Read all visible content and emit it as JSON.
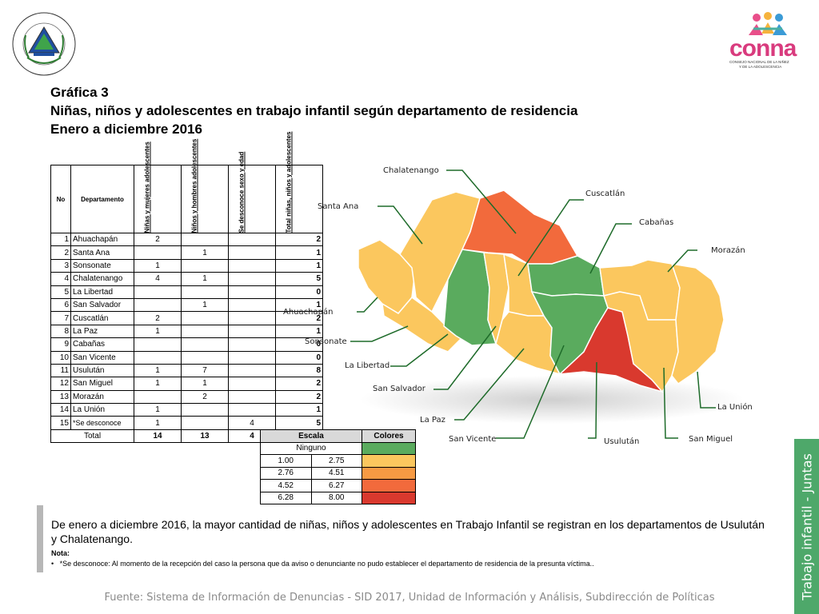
{
  "header": {
    "seal_text": "REPÚBLICA DE EL SALVADOR EN LA AMÉRICA CENTRAL",
    "logo_text": "conna",
    "logo_subtitle_1": "CONSEJO NACIONAL DE LA NIÑEZ",
    "logo_subtitle_2": "Y DE LA ADOLESCENCIA"
  },
  "title": {
    "line1": "Gráfica 3",
    "line2": "Niñas, niños y adolescentes en trabajo infantil según departamento de residencia",
    "line3": "Enero a diciembre 2016"
  },
  "table": {
    "headers": {
      "no": "No",
      "dep": "Departamento",
      "c1": "Niñas y mujeres adolescentes",
      "c2": "Niños y hombres adolescentes",
      "c3": "Se desconoce sexo y edad",
      "c4": "Total niñas, niños y adolescentes"
    },
    "rows": [
      {
        "no": "1",
        "dep": "Ahuachapán",
        "c1": "2",
        "c2": "",
        "c3": "",
        "total": "2"
      },
      {
        "no": "2",
        "dep": "Santa Ana",
        "c1": "",
        "c2": "1",
        "c3": "",
        "total": "1"
      },
      {
        "no": "3",
        "dep": "Sonsonate",
        "c1": "1",
        "c2": "",
        "c3": "",
        "total": "1"
      },
      {
        "no": "4",
        "dep": "Chalatenango",
        "c1": "4",
        "c2": "1",
        "c3": "",
        "total": "5"
      },
      {
        "no": "5",
        "dep": "La Libertad",
        "c1": "",
        "c2": "",
        "c3": "",
        "total": "0"
      },
      {
        "no": "6",
        "dep": "San Salvador",
        "c1": "",
        "c2": "1",
        "c3": "",
        "total": "1"
      },
      {
        "no": "7",
        "dep": "Cuscatlán",
        "c1": "2",
        "c2": "",
        "c3": "",
        "total": "2"
      },
      {
        "no": "8",
        "dep": "La Paz",
        "c1": "1",
        "c2": "",
        "c3": "",
        "total": "1"
      },
      {
        "no": "9",
        "dep": "Cabañas",
        "c1": "",
        "c2": "",
        "c3": "",
        "total": "0"
      },
      {
        "no": "10",
        "dep": "San Vicente",
        "c1": "",
        "c2": "",
        "c3": "",
        "total": "0"
      },
      {
        "no": "11",
        "dep": "Usulután",
        "c1": "1",
        "c2": "7",
        "c3": "",
        "total": "8"
      },
      {
        "no": "12",
        "dep": "San Miguel",
        "c1": "1",
        "c2": "1",
        "c3": "",
        "total": "2"
      },
      {
        "no": "13",
        "dep": "Morazán",
        "c1": "",
        "c2": "2",
        "c3": "",
        "total": "2"
      },
      {
        "no": "14",
        "dep": "La Unión",
        "c1": "1",
        "c2": "",
        "c3": "",
        "total": "1"
      },
      {
        "no": "15",
        "dep": "*Se desconoce",
        "c1": "1",
        "c2": "",
        "c3": "4",
        "total": "5"
      }
    ],
    "total_row": {
      "label": "Total",
      "c1": "14",
      "c2": "13",
      "c3": "4",
      "total": "31"
    }
  },
  "scale": {
    "header_escala": "Escala",
    "header_colores": "Colores",
    "rows": [
      {
        "from": "Ninguno",
        "to": "",
        "color": "#5aab5e"
      },
      {
        "from": "1.00",
        "to": "2.75",
        "color": "#fbc75e"
      },
      {
        "from": "2.76",
        "to": "4.51",
        "color": "#f79a43"
      },
      {
        "from": "4.52",
        "to": "6.27",
        "color": "#f26a3c"
      },
      {
        "from": "6.28",
        "to": "8.00",
        "color": "#d9392e"
      }
    ]
  },
  "map_labels": {
    "chalatenango": "Chalatenango",
    "cuscatlan": "Cuscatlán",
    "santa_ana": "Santa Ana",
    "cabanas": "Cabañas",
    "morazan": "Morazán",
    "ahuachapan": "Ahuachapán",
    "sonsonate": "Sonsonate",
    "la_libertad": "La Libertad",
    "san_salvador": "San Salvador",
    "la_paz": "La Paz",
    "san_vicente": "San Vicente",
    "usulutan": "Usulután",
    "san_miguel": "San Miguel",
    "la_union": "La Unión"
  },
  "sidebar_text": "Trabajo infantil - Juntas",
  "description": "De enero a diciembre 2016, la mayor cantidad de niñas, niños y adolescentes en Trabajo Infantil se registran en los departamentos de Usulután y Chalatenango.",
  "note_title": "Nota:",
  "note_item": "*Se desconoce: Al momento de la recepción del caso la persona que da aviso o denunciante no pudo establecer el departamento de residencia de la presunta víctima..",
  "source": "Fuente: Sistema de Información de Denuncias - SID 2017, Unidad de Información y Análisis, Subdirección de Políticas",
  "colors": {
    "green": "#5aab5e",
    "yellow": "#fbc75e",
    "orange": "#f26a3c",
    "red": "#d9392e",
    "line_green": "#2e7d32",
    "sidebar": "#4ea86a"
  }
}
